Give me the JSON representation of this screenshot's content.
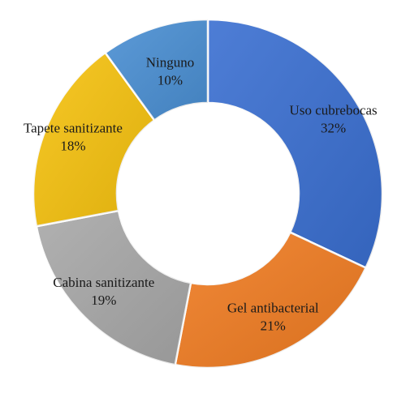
{
  "chart_data": {
    "type": "pie",
    "donut": true,
    "title": "",
    "slices": [
      {
        "label": "Uso cubrebocas",
        "value": 32,
        "display": "32%",
        "color": "#3a6fd1"
      },
      {
        "label": "Gel antibacterial",
        "value": 21,
        "display": "21%",
        "color": "#f07c22"
      },
      {
        "label": "Cabina sanitizante",
        "value": 19,
        "display": "19%",
        "color": "#a8a8a8"
      },
      {
        "label": "Tapete sanitizante",
        "value": 18,
        "display": "18%",
        "color": "#f6c20f"
      },
      {
        "label": "Ninguno",
        "value": 10,
        "display": "10%",
        "color": "#4a8fd3"
      }
    ],
    "start_angle_deg": 0,
    "direction": "clockwise",
    "legend": "none"
  }
}
